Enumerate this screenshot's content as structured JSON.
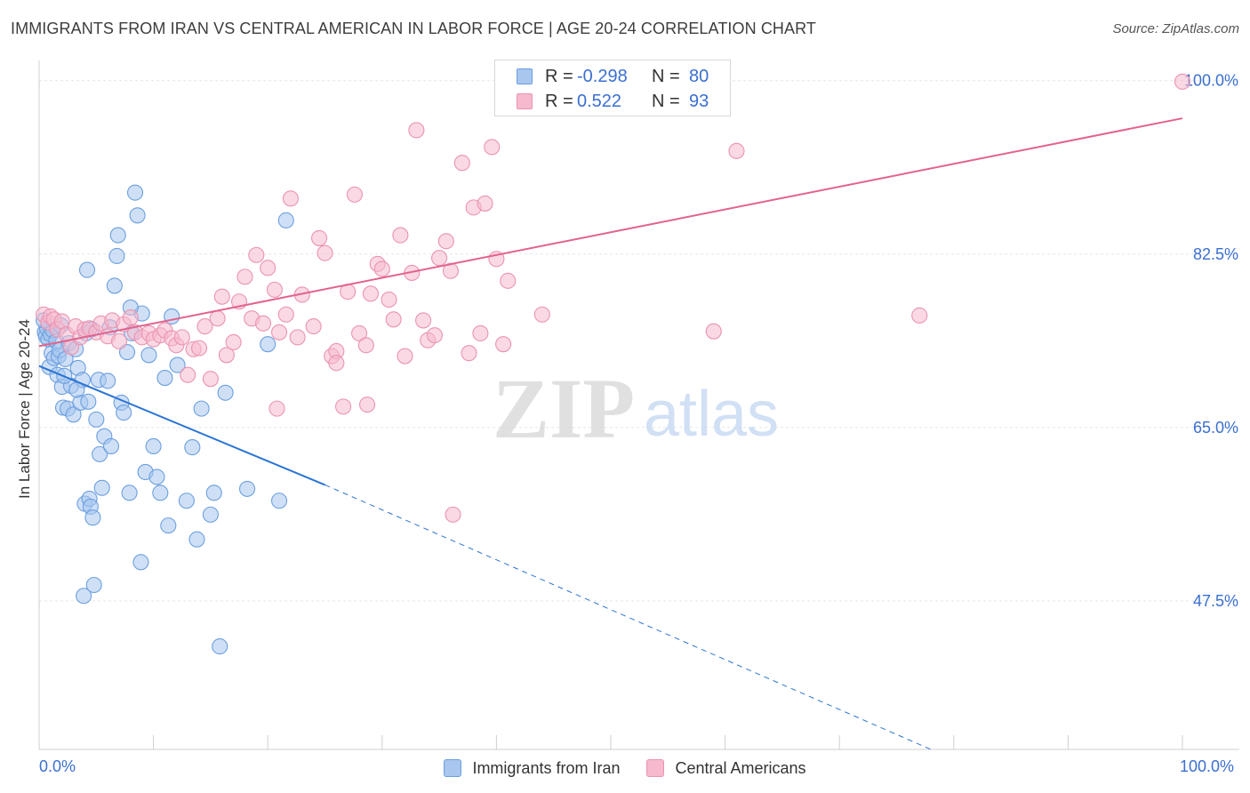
{
  "header": {
    "title": "IMMIGRANTS FROM IRAN VS CENTRAL AMERICAN IN LABOR FORCE | AGE 20-24 CORRELATION CHART",
    "source": "Source: ZipAtlas.com"
  },
  "watermark": {
    "zip": "ZIP",
    "atlas": "atlas"
  },
  "legend_top": {
    "rows": [
      {
        "r_label": "R =",
        "r_value": "-0.298",
        "n_label": "N =",
        "n_value": "80"
      },
      {
        "r_label": "R =",
        "r_value": "0.522",
        "n_label": "N =",
        "n_value": "93"
      }
    ]
  },
  "legend_bottom": {
    "items": [
      {
        "label": "Immigrants from Iran"
      },
      {
        "label": "Central Americans"
      }
    ]
  },
  "x_tick_labels": {
    "left": "0.0%",
    "right": "100.0%"
  },
  "colors": {
    "blue_fill": "#a8c6ee",
    "blue_stroke": "#6b9fe0",
    "blue_line": "#2a74d4",
    "pink_fill": "#f6b9cd",
    "pink_stroke": "#ea93b1",
    "pink_line": "#e3628d",
    "tick_text": "#3a6fd0"
  },
  "chart_data": {
    "type": "scatter",
    "title": "IMMIGRANTS FROM IRAN VS CENTRAL AMERICAN IN LABOR FORCE | AGE 20-24 CORRELATION CHART",
    "xlabel": "",
    "ylabel": "In Labor Force | Age 20-24",
    "xlim": [
      0,
      100
    ],
    "ylim": [
      32.5,
      101.5
    ],
    "y_ticks": [
      47.5,
      65.0,
      82.5,
      100.0
    ],
    "y_tick_labels": [
      "47.5%",
      "65.0%",
      "82.5%",
      "100.0%"
    ],
    "grid": true,
    "legend": "top-center",
    "series": [
      {
        "name": "Immigrants from Iran",
        "r": -0.298,
        "n": 80,
        "trend": {
          "x": [
            0,
            25
          ],
          "y": [
            71.2,
            59.2
          ],
          "dashed_to": {
            "x": 78,
            "y": 32.5
          }
        },
        "points": [
          [
            0.5,
            74.6
          ],
          [
            0.6,
            74.2
          ],
          [
            0.7,
            75.0
          ],
          [
            0.8,
            73.9
          ],
          [
            0.9,
            71.1
          ],
          [
            1.0,
            74.4
          ],
          [
            1.1,
            72.5
          ],
          [
            1.2,
            74.8
          ],
          [
            1.3,
            72.0
          ],
          [
            1.5,
            73.7
          ],
          [
            1.6,
            70.3
          ],
          [
            1.7,
            72.2
          ],
          [
            1.8,
            72.8
          ],
          [
            2.0,
            69.1
          ],
          [
            2.1,
            67.0
          ],
          [
            2.3,
            71.9
          ],
          [
            2.5,
            66.9
          ],
          [
            2.6,
            73.5
          ],
          [
            2.8,
            69.2
          ],
          [
            3.0,
            66.3
          ],
          [
            3.2,
            72.9
          ],
          [
            3.4,
            71.0
          ],
          [
            3.6,
            67.5
          ],
          [
            3.8,
            69.8
          ],
          [
            4.0,
            57.3
          ],
          [
            4.1,
            74.5
          ],
          [
            4.2,
            80.9
          ],
          [
            4.3,
            67.6
          ],
          [
            4.4,
            57.8
          ],
          [
            4.5,
            57.0
          ],
          [
            4.7,
            55.9
          ],
          [
            4.8,
            49.1
          ],
          [
            5.0,
            65.8
          ],
          [
            5.2,
            69.8
          ],
          [
            5.3,
            62.3
          ],
          [
            5.5,
            58.9
          ],
          [
            5.7,
            64.1
          ],
          [
            6.0,
            69.7
          ],
          [
            6.3,
            63.1
          ],
          [
            6.6,
            79.3
          ],
          [
            6.8,
            82.3
          ],
          [
            6.9,
            84.4
          ],
          [
            7.2,
            67.5
          ],
          [
            7.4,
            66.5
          ],
          [
            7.7,
            72.6
          ],
          [
            7.9,
            58.4
          ],
          [
            8.1,
            74.5
          ],
          [
            8.4,
            88.7
          ],
          [
            8.6,
            86.4
          ],
          [
            8.9,
            51.4
          ],
          [
            9.0,
            76.5
          ],
          [
            9.3,
            60.5
          ],
          [
            9.6,
            72.3
          ],
          [
            10.0,
            63.1
          ],
          [
            10.3,
            60.0
          ],
          [
            10.6,
            58.4
          ],
          [
            11.0,
            70.0
          ],
          [
            11.3,
            55.1
          ],
          [
            11.6,
            76.2
          ],
          [
            12.1,
            71.3
          ],
          [
            12.9,
            57.6
          ],
          [
            13.4,
            63.0
          ],
          [
            13.8,
            53.7
          ],
          [
            14.2,
            66.9
          ],
          [
            15.0,
            56.2
          ],
          [
            15.3,
            58.4
          ],
          [
            15.8,
            42.9
          ],
          [
            16.3,
            68.5
          ],
          [
            18.2,
            58.8
          ],
          [
            20.0,
            73.4
          ],
          [
            21.0,
            57.6
          ],
          [
            21.6,
            85.9
          ],
          [
            3.9,
            48.0
          ],
          [
            1.9,
            75.3
          ],
          [
            2.2,
            70.2
          ],
          [
            0.4,
            75.8
          ],
          [
            8.0,
            77.1
          ],
          [
            6.2,
            75.1
          ],
          [
            4.6,
            74.9
          ],
          [
            3.3,
            68.8
          ]
        ]
      },
      {
        "name": "Central Americans",
        "r": 0.522,
        "n": 93,
        "trend": {
          "x": [
            0,
            100
          ],
          "y": [
            73.2,
            96.2
          ]
        },
        "points": [
          [
            0.4,
            76.4
          ],
          [
            0.8,
            75.6
          ],
          [
            1.0,
            76.2
          ],
          [
            1.3,
            75.9
          ],
          [
            1.6,
            74.9
          ],
          [
            2.0,
            75.7
          ],
          [
            2.4,
            74.4
          ],
          [
            2.8,
            73.1
          ],
          [
            3.2,
            75.2
          ],
          [
            3.6,
            74.1
          ],
          [
            4.0,
            74.9
          ],
          [
            4.4,
            75.0
          ],
          [
            5.0,
            74.6
          ],
          [
            5.4,
            75.5
          ],
          [
            6.0,
            74.2
          ],
          [
            6.4,
            75.8
          ],
          [
            7.0,
            73.7
          ],
          [
            7.4,
            75.4
          ],
          [
            8.0,
            76.1
          ],
          [
            8.4,
            74.6
          ],
          [
            9.0,
            74.1
          ],
          [
            9.6,
            74.5
          ],
          [
            10.0,
            73.9
          ],
          [
            10.6,
            74.3
          ],
          [
            11.0,
            74.8
          ],
          [
            11.6,
            74.0
          ],
          [
            12.0,
            73.3
          ],
          [
            12.5,
            74.1
          ],
          [
            13.0,
            70.3
          ],
          [
            13.5,
            72.9
          ],
          [
            14.0,
            73.0
          ],
          [
            14.5,
            75.2
          ],
          [
            15.0,
            69.9
          ],
          [
            15.6,
            76.0
          ],
          [
            16.0,
            78.2
          ],
          [
            16.4,
            72.3
          ],
          [
            17.0,
            73.6
          ],
          [
            17.5,
            77.7
          ],
          [
            18.0,
            80.2
          ],
          [
            18.6,
            76.0
          ],
          [
            19.0,
            82.4
          ],
          [
            19.6,
            75.5
          ],
          [
            20.0,
            81.1
          ],
          [
            20.6,
            78.9
          ],
          [
            21.0,
            74.6
          ],
          [
            21.6,
            76.4
          ],
          [
            22.0,
            88.1
          ],
          [
            22.6,
            74.1
          ],
          [
            23.0,
            78.4
          ],
          [
            24.0,
            75.2
          ],
          [
            24.5,
            84.1
          ],
          [
            25.0,
            82.6
          ],
          [
            25.6,
            72.2
          ],
          [
            26.0,
            72.7
          ],
          [
            26.6,
            67.1
          ],
          [
            27.0,
            78.7
          ],
          [
            27.6,
            88.5
          ],
          [
            28.0,
            74.5
          ],
          [
            28.6,
            73.3
          ],
          [
            29.0,
            78.5
          ],
          [
            29.6,
            81.5
          ],
          [
            30.0,
            81.0
          ],
          [
            30.6,
            77.9
          ],
          [
            31.0,
            75.9
          ],
          [
            31.6,
            84.4
          ],
          [
            32.0,
            72.2
          ],
          [
            32.6,
            80.6
          ],
          [
            33.0,
            95.0
          ],
          [
            33.6,
            75.8
          ],
          [
            34.0,
            73.8
          ],
          [
            34.6,
            74.3
          ],
          [
            35.0,
            82.1
          ],
          [
            35.6,
            83.8
          ],
          [
            36.0,
            80.8
          ],
          [
            37.0,
            91.7
          ],
          [
            37.6,
            72.5
          ],
          [
            38.0,
            87.2
          ],
          [
            38.6,
            74.5
          ],
          [
            39.0,
            87.6
          ],
          [
            39.6,
            93.3
          ],
          [
            40.0,
            82.0
          ],
          [
            40.6,
            73.4
          ],
          [
            41.0,
            79.8
          ],
          [
            44.0,
            76.4
          ],
          [
            59.0,
            74.7
          ],
          [
            61.0,
            92.9
          ],
          [
            77.0,
            76.3
          ],
          [
            100.0,
            99.9
          ],
          [
            26.0,
            71.5
          ],
          [
            28.7,
            67.3
          ],
          [
            20.8,
            66.9
          ],
          [
            36.2,
            56.2
          ],
          [
            46.5,
            99.2
          ]
        ]
      }
    ]
  }
}
